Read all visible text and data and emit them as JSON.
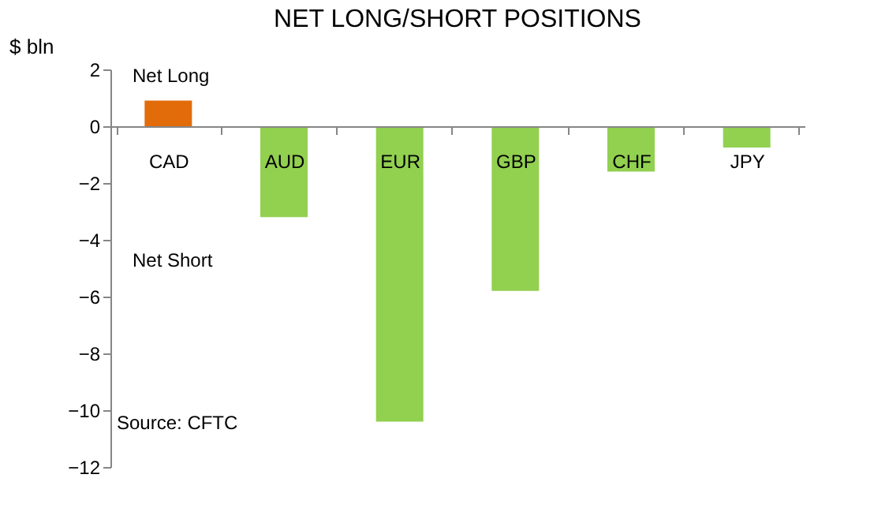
{
  "chart_data": {
    "type": "bar",
    "title": "NET LONG/SHORT POSITIONS",
    "ylabel": "$ bln",
    "categories": [
      "CAD",
      "AUD",
      "EUR",
      "GBP",
      "CHF",
      "JPY"
    ],
    "values": [
      0.9,
      -3.2,
      -10.4,
      -5.8,
      -1.6,
      -0.75
    ],
    "colors": [
      "#e36c0a",
      "#92d050",
      "#92d050",
      "#92d050",
      "#92d050",
      "#92d050"
    ],
    "ylim": [
      -12,
      2
    ],
    "yticks": [
      -12,
      -10,
      -8,
      -6,
      -4,
      -2,
      0,
      2
    ],
    "grid": false,
    "legend": false,
    "annotations": [
      "Net Long",
      "Net Short",
      "Source: CFTC"
    ]
  }
}
